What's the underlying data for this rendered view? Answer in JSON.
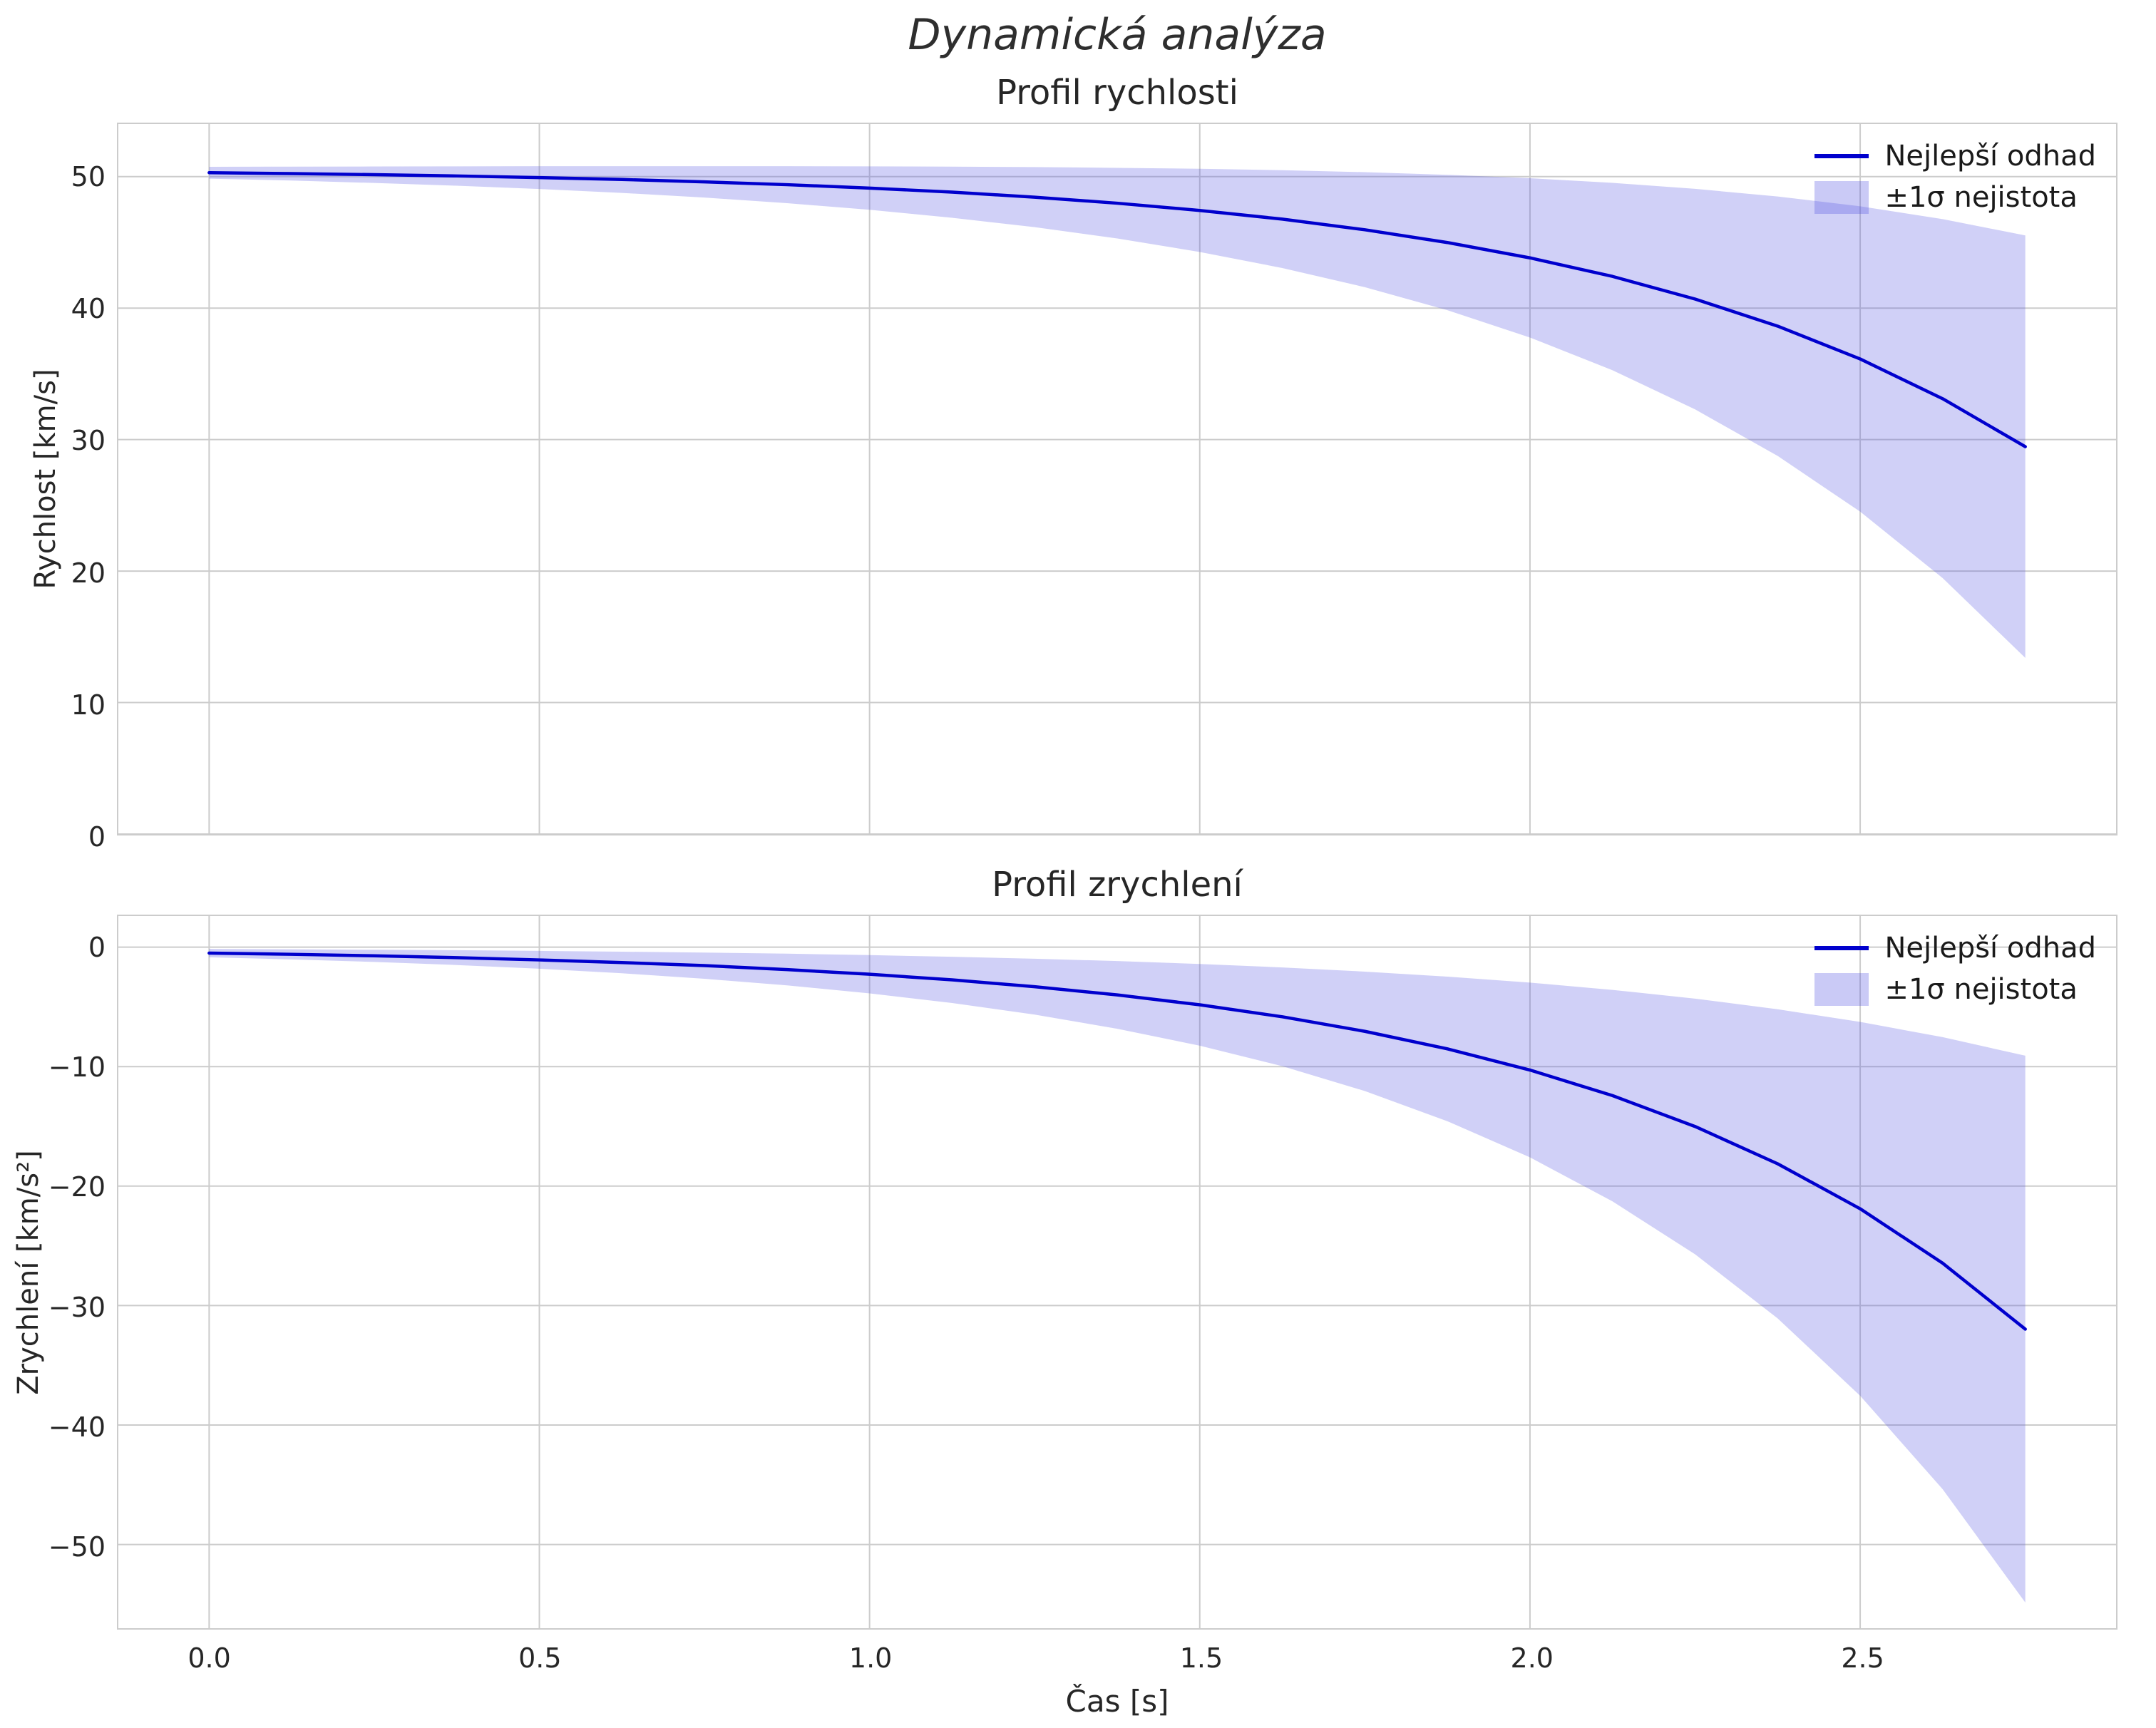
{
  "suptitle": "Dynamická analýza",
  "chart_data": [
    {
      "type": "line",
      "title": "Profil rychlosti",
      "ylabel": "Rychlost [km/s]",
      "xlabel": "",
      "legend": [
        "Nejlepší odhad",
        "±1σ nejistota"
      ],
      "colors": {
        "line": "#0000cd",
        "band": "#5050e0",
        "grid": "#cccccc"
      },
      "xlim": [
        -0.1375,
        2.8875
      ],
      "ylim": [
        0,
        54
      ],
      "xticks": {
        "values": [
          0,
          0.5,
          1.0,
          1.5,
          2.0,
          2.5
        ],
        "labels": [
          "0.0",
          "0.5",
          "1.0",
          "1.5",
          "2.0",
          "2.5"
        ]
      },
      "yticks": {
        "values": [
          0,
          10,
          20,
          30,
          40,
          50
        ],
        "labels": [
          "0",
          "10",
          "20",
          "30",
          "40",
          "50"
        ]
      },
      "x": [
        0,
        0.125,
        0.25,
        0.375,
        0.5,
        0.625,
        0.75,
        0.875,
        1.0,
        1.125,
        1.25,
        1.375,
        1.5,
        1.625,
        1.75,
        1.875,
        2.0,
        2.125,
        2.25,
        2.375,
        2.5,
        2.625,
        2.75
      ],
      "mean": [
        50.3,
        50.23,
        50.15,
        50.05,
        49.93,
        49.78,
        49.6,
        49.39,
        49.13,
        48.82,
        48.44,
        47.98,
        47.43,
        46.77,
        45.96,
        44.99,
        43.82,
        42.41,
        40.69,
        38.63,
        36.13,
        33.11,
        29.46
      ],
      "upper": [
        50.75,
        50.76,
        50.77,
        50.78,
        50.79,
        50.79,
        50.8,
        50.79,
        50.78,
        50.76,
        50.73,
        50.67,
        50.6,
        50.49,
        50.34,
        50.14,
        49.88,
        49.53,
        49.07,
        48.49,
        47.74,
        46.77,
        45.53
      ],
      "lower": [
        49.85,
        49.7,
        49.52,
        49.31,
        49.06,
        48.76,
        48.41,
        47.98,
        47.48,
        46.87,
        46.16,
        45.3,
        44.27,
        43.05,
        41.59,
        39.84,
        37.76,
        35.28,
        32.3,
        28.76,
        24.52,
        19.46,
        13.4
      ]
    },
    {
      "type": "line",
      "title": "Profil zrychlení",
      "ylabel": "Zrychlení [km/s²]",
      "xlabel": "Čas [s]",
      "legend": [
        "Nejlepší odhad",
        "±1σ nejistota"
      ],
      "colors": {
        "line": "#0000cd",
        "band": "#5050e0",
        "grid": "#cccccc"
      },
      "xlim": [
        -0.1375,
        2.8875
      ],
      "ylim": [
        -57,
        2.6
      ],
      "xticks": {
        "values": [
          0,
          0.5,
          1.0,
          1.5,
          2.0,
          2.5
        ],
        "labels": [
          "0.0",
          "0.5",
          "1.0",
          "1.5",
          "2.0",
          "2.5"
        ]
      },
      "yticks": {
        "values": [
          0,
          -10,
          -20,
          -30,
          -40,
          -50
        ],
        "labels": [
          "0",
          "−10",
          "−20",
          "−30",
          "−40",
          "−50"
        ]
      },
      "x": [
        0,
        0.125,
        0.25,
        0.375,
        0.5,
        0.625,
        0.75,
        0.875,
        1.0,
        1.125,
        1.25,
        1.375,
        1.5,
        1.625,
        1.75,
        1.875,
        2.0,
        2.125,
        2.25,
        2.375,
        2.5,
        2.625,
        2.75
      ],
      "mean": [
        -0.5,
        -0.6,
        -0.73,
        -0.88,
        -1.07,
        -1.29,
        -1.55,
        -1.88,
        -2.27,
        -2.74,
        -3.31,
        -4.0,
        -4.83,
        -5.83,
        -7.05,
        -8.52,
        -10.29,
        -12.43,
        -15.01,
        -18.13,
        -21.9,
        -26.46,
        -31.97
      ],
      "upper": [
        -0.15,
        -0.18,
        -0.22,
        -0.26,
        -0.32,
        -0.38,
        -0.46,
        -0.55,
        -0.67,
        -0.81,
        -0.97,
        -1.17,
        -1.41,
        -1.7,
        -2.05,
        -2.47,
        -2.97,
        -3.58,
        -4.31,
        -5.2,
        -6.26,
        -7.54,
        -9.09
      ],
      "lower": [
        -0.85,
        -1.03,
        -1.24,
        -1.5,
        -1.81,
        -2.19,
        -2.65,
        -3.2,
        -3.87,
        -4.68,
        -5.65,
        -6.83,
        -8.25,
        -9.97,
        -12.05,
        -14.57,
        -17.6,
        -21.28,
        -25.71,
        -31.07,
        -37.55,
        -45.38,
        -54.85
      ]
    }
  ]
}
